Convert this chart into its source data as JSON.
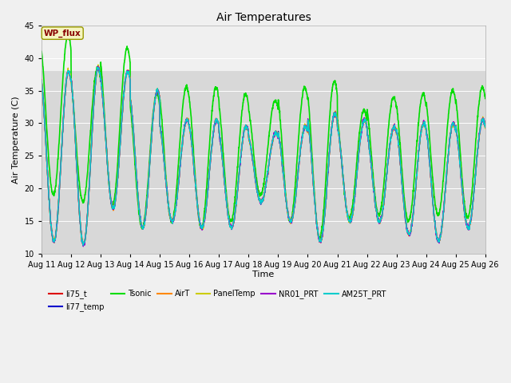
{
  "title": "Air Temperatures",
  "ylabel": "Air Temperature (C)",
  "xlabel": "Time",
  "ylim": [
    10,
    45
  ],
  "bg_color_lower": "#d8d8d8",
  "bg_color_upper": "#f0f0f0",
  "fig_color": "#f0f0f0",
  "legend_box_facecolor": "#f5f5c0",
  "legend_box_edgecolor": "#999900",
  "legend_label_color": "#880000",
  "legend_text": "WP_flux",
  "series": [
    {
      "name": "li75_t",
      "color": "#dd0000"
    },
    {
      "name": "li77_temp",
      "color": "#0000cc"
    },
    {
      "name": "Tsonic",
      "color": "#00dd00"
    },
    {
      "name": "AirT",
      "color": "#ff8800"
    },
    {
      "name": "PanelTemp",
      "color": "#cccc00"
    },
    {
      "name": "NR01_PRT",
      "color": "#9900cc"
    },
    {
      "name": "AM25T_PRT",
      "color": "#00cccc"
    }
  ],
  "n_days": 15,
  "pts_per_day": 144,
  "day_mins_common": [
    12.0,
    11.5,
    17.0,
    14.0,
    15.0,
    14.0,
    14.0,
    18.0,
    15.0,
    12.0,
    15.0,
    15.0,
    13.0,
    12.0,
    14.0
  ],
  "day_maxs_common": [
    38.0,
    38.5,
    38.0,
    35.0,
    30.5,
    30.5,
    29.5,
    28.5,
    29.5,
    31.5,
    30.5,
    29.5,
    30.0,
    30.0,
    30.5
  ],
  "day_maxs_tsonic": [
    43.5,
    38.5,
    41.5,
    34.5,
    35.5,
    35.5,
    34.5,
    33.5,
    35.5,
    36.5,
    32.0,
    34.0,
    34.5,
    35.0,
    35.5
  ],
  "day_mins_tsonic": [
    19.0,
    18.0,
    17.5,
    14.0,
    15.0,
    14.0,
    15.0,
    19.0,
    15.0,
    12.5,
    15.5,
    16.0,
    15.0,
    16.0,
    15.5
  ],
  "yticks": [
    10,
    15,
    20,
    25,
    30,
    35,
    40,
    45
  ],
  "grid_color": "#ffffff",
  "lw_common": 1.0,
  "lw_tsonic": 1.2
}
